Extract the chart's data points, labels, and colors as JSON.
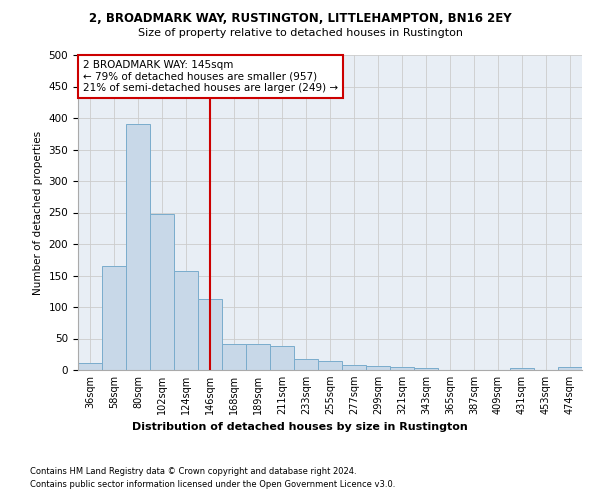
{
  "title1": "2, BROADMARK WAY, RUSTINGTON, LITTLEHAMPTON, BN16 2EY",
  "title2": "Size of property relative to detached houses in Rustington",
  "xlabel": "Distribution of detached houses by size in Rustington",
  "ylabel": "Number of detached properties",
  "categories": [
    "36sqm",
    "58sqm",
    "80sqm",
    "102sqm",
    "124sqm",
    "146sqm",
    "168sqm",
    "189sqm",
    "211sqm",
    "233sqm",
    "255sqm",
    "277sqm",
    "299sqm",
    "321sqm",
    "343sqm",
    "365sqm",
    "387sqm",
    "409sqm",
    "431sqm",
    "453sqm",
    "474sqm"
  ],
  "values": [
    11,
    165,
    390,
    248,
    157,
    113,
    42,
    41,
    38,
    18,
    14,
    8,
    6,
    5,
    3,
    0,
    0,
    0,
    3,
    0,
    4
  ],
  "bar_color": "#c8d8e8",
  "bar_edge_color": "#7aaccc",
  "grid_color": "#cccccc",
  "vline_x_index": 5,
  "vline_color": "#cc0000",
  "annotation_text": "2 BROADMARK WAY: 145sqm\n← 79% of detached houses are smaller (957)\n21% of semi-detached houses are larger (249) →",
  "annotation_box_color": "#ffffff",
  "annotation_box_edge": "#cc0000",
  "footer1": "Contains HM Land Registry data © Crown copyright and database right 2024.",
  "footer2": "Contains public sector information licensed under the Open Government Licence v3.0.",
  "ylim": [
    0,
    500
  ],
  "yticks": [
    0,
    50,
    100,
    150,
    200,
    250,
    300,
    350,
    400,
    450,
    500
  ],
  "background_color": "#e8eef5"
}
